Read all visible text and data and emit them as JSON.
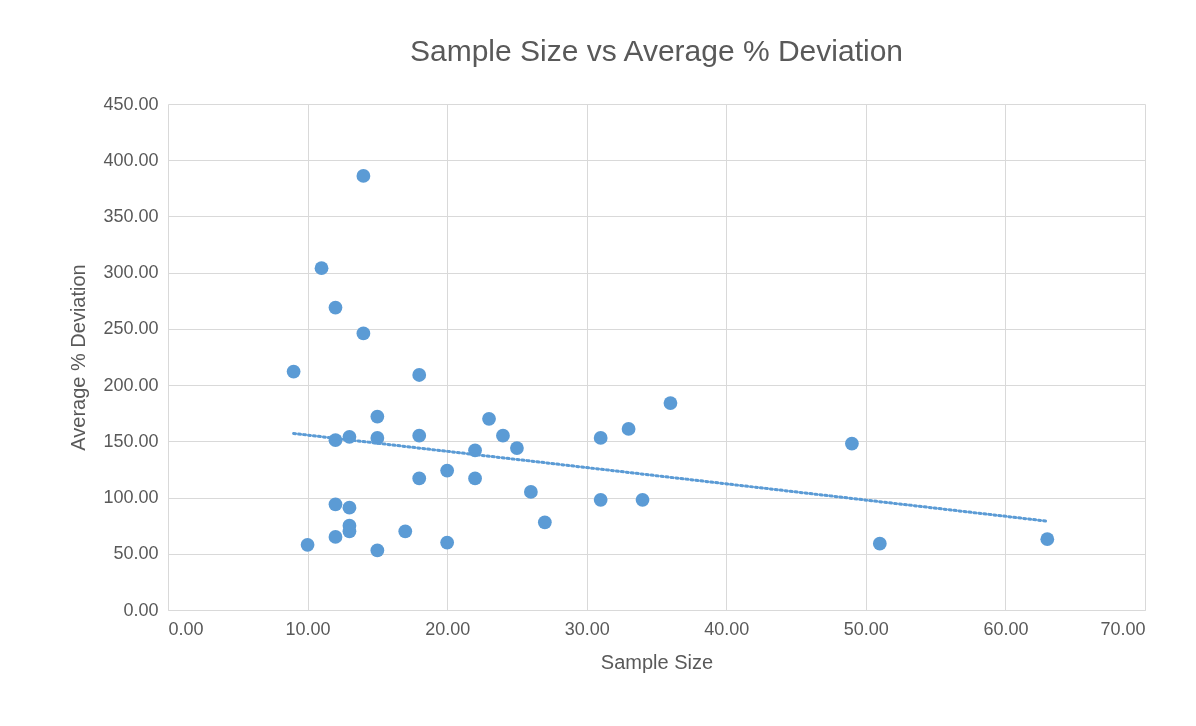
{
  "chart_data": {
    "type": "scatter",
    "title": "Sample Size vs Average % Deviation",
    "xlabel": "Sample Size",
    "ylabel": "Average % Deviation",
    "xlim": [
      0,
      70
    ],
    "xticks": [
      {
        "value": 0,
        "label": "0.00"
      },
      {
        "value": 10,
        "label": "10.00"
      },
      {
        "value": 20,
        "label": "20.00"
      },
      {
        "value": 30,
        "label": "30.00"
      },
      {
        "value": 40,
        "label": "40.00"
      },
      {
        "value": 50,
        "label": "50.00"
      },
      {
        "value": 60,
        "label": "60.00"
      },
      {
        "value": 70,
        "label": "70.00"
      }
    ],
    "ylim": [
      0,
      450
    ],
    "yticks": [
      {
        "value": 0,
        "label": "0.00"
      },
      {
        "value": 50,
        "label": "50.00"
      },
      {
        "value": 100,
        "label": "100.00"
      },
      {
        "value": 150,
        "label": "150.00"
      },
      {
        "value": 200,
        "label": "200.00"
      },
      {
        "value": 250,
        "label": "250.00"
      },
      {
        "value": 300,
        "label": "300.00"
      },
      {
        "value": 350,
        "label": "350.00"
      },
      {
        "value": 400,
        "label": "400.00"
      },
      {
        "value": 450,
        "label": "450.00"
      }
    ],
    "grid": true,
    "marker": "circle",
    "series": [
      {
        "color": "#5b9bd5",
        "x": [
          9,
          10,
          11,
          12,
          12,
          12,
          12,
          13,
          13,
          13,
          13,
          14,
          14,
          15,
          15,
          15,
          17,
          18,
          18,
          18,
          20,
          20,
          22,
          22,
          23,
          24,
          25,
          26,
          27,
          31,
          31,
          33,
          34,
          36,
          49,
          51,
          63
        ],
        "values": [
          212,
          58,
          304,
          269,
          151,
          94,
          65,
          154,
          91,
          75,
          70,
          386,
          246,
          172,
          153,
          53,
          70,
          209,
          155,
          117,
          124,
          60,
          142,
          117,
          170,
          155,
          144,
          105,
          78,
          153,
          98,
          161,
          98,
          184,
          148,
          59,
          63
        ]
      },
      {
        "type": "line",
        "color": "#5b9bd5",
        "line_style": "dotted",
        "marker": "none",
        "x": [
          9,
          63
        ],
        "values": [
          157,
          79
        ]
      }
    ]
  }
}
